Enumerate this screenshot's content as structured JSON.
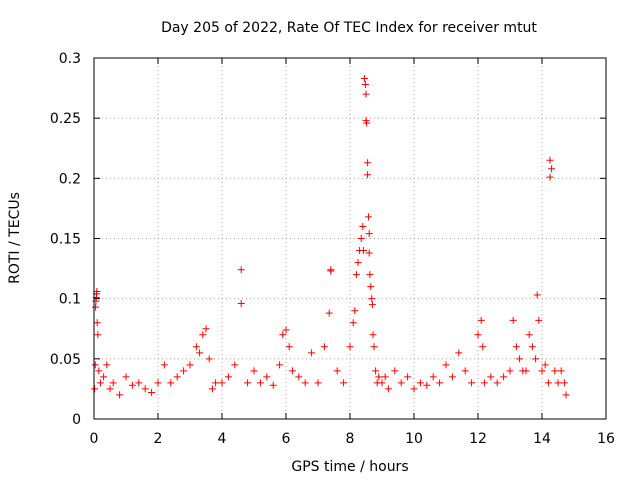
{
  "chart_data": {
    "type": "scatter",
    "title": "Day 205 of 2022, Rate Of TEC Index for receiver mtut",
    "xlabel": "GPS time / hours",
    "ylabel": "ROTI / TECUs",
    "xlim": [
      0,
      16
    ],
    "ylim": [
      0,
      0.3
    ],
    "xticks": [
      0,
      2,
      4,
      6,
      8,
      10,
      12,
      14,
      16
    ],
    "xtick_labels": [
      "0",
      "2",
      "4",
      "6",
      "8",
      "10",
      "12",
      "14",
      "16"
    ],
    "yticks": [
      0,
      0.05,
      0.1,
      0.15,
      0.2,
      0.25,
      0.3
    ],
    "ytick_labels": [
      "0",
      "0.05",
      "0.1",
      "0.15",
      "0.2",
      "0.25",
      "0.3"
    ],
    "grid": true,
    "marker": "plus",
    "color": "#ff0000",
    "series": [
      {
        "name": "ROTI",
        "x": [
          0.02,
          0.04,
          0.05,
          0.06,
          0.07,
          0.08,
          0.09,
          0.1,
          0.12,
          0.15,
          0.2,
          0.3,
          0.4,
          0.5,
          0.6,
          0.8,
          1.0,
          1.2,
          1.4,
          1.6,
          1.8,
          2.0,
          2.2,
          2.4,
          2.6,
          2.8,
          3.0,
          3.2,
          3.3,
          3.4,
          3.5,
          3.6,
          3.7,
          3.8,
          4.0,
          4.2,
          4.4,
          4.6,
          4.6,
          4.8,
          5.0,
          5.2,
          5.4,
          5.6,
          5.8,
          5.9,
          6.0,
          6.1,
          6.2,
          6.4,
          6.6,
          6.8,
          7.0,
          7.2,
          7.35,
          7.4,
          7.4,
          7.6,
          7.8,
          8.0,
          8.1,
          8.15,
          8.2,
          8.25,
          8.3,
          8.35,
          8.4,
          8.42,
          8.45,
          8.48,
          8.5,
          8.5,
          8.52,
          8.55,
          8.55,
          8.58,
          8.6,
          8.6,
          8.62,
          8.65,
          8.68,
          8.7,
          8.72,
          8.75,
          8.8,
          8.85,
          8.9,
          9.0,
          9.1,
          9.2,
          9.4,
          9.6,
          9.8,
          10.0,
          10.2,
          10.4,
          10.6,
          10.8,
          11.0,
          11.2,
          11.4,
          11.6,
          11.8,
          12.0,
          12.1,
          12.15,
          12.2,
          12.4,
          12.6,
          12.8,
          13.0,
          13.1,
          13.2,
          13.3,
          13.4,
          13.5,
          13.6,
          13.7,
          13.8,
          13.85,
          13.9,
          14.0,
          14.1,
          14.2,
          14.25,
          14.25,
          14.3,
          14.4,
          14.5,
          14.6,
          14.7,
          14.75
        ],
        "y": [
          0.025,
          0.045,
          0.093,
          0.098,
          0.101,
          0.104,
          0.106,
          0.08,
          0.07,
          0.04,
          0.03,
          0.035,
          0.045,
          0.025,
          0.03,
          0.02,
          0.035,
          0.028,
          0.03,
          0.025,
          0.022,
          0.03,
          0.045,
          0.03,
          0.035,
          0.04,
          0.045,
          0.06,
          0.055,
          0.07,
          0.075,
          0.05,
          0.025,
          0.03,
          0.03,
          0.035,
          0.045,
          0.124,
          0.096,
          0.03,
          0.04,
          0.03,
          0.035,
          0.028,
          0.045,
          0.07,
          0.074,
          0.06,
          0.04,
          0.035,
          0.03,
          0.055,
          0.03,
          0.06,
          0.088,
          0.123,
          0.124,
          0.04,
          0.03,
          0.06,
          0.08,
          0.09,
          0.12,
          0.13,
          0.14,
          0.15,
          0.16,
          0.14,
          0.283,
          0.278,
          0.27,
          0.248,
          0.246,
          0.213,
          0.203,
          0.168,
          0.154,
          0.138,
          0.12,
          0.11,
          0.1,
          0.095,
          0.07,
          0.06,
          0.04,
          0.03,
          0.035,
          0.03,
          0.035,
          0.025,
          0.04,
          0.03,
          0.035,
          0.025,
          0.03,
          0.028,
          0.035,
          0.03,
          0.045,
          0.035,
          0.055,
          0.04,
          0.03,
          0.07,
          0.082,
          0.06,
          0.03,
          0.035,
          0.03,
          0.035,
          0.04,
          0.082,
          0.06,
          0.05,
          0.04,
          0.04,
          0.07,
          0.06,
          0.05,
          0.103,
          0.082,
          0.04,
          0.045,
          0.03,
          0.201,
          0.215,
          0.208,
          0.04,
          0.03,
          0.04,
          0.03,
          0.02
        ]
      }
    ]
  }
}
